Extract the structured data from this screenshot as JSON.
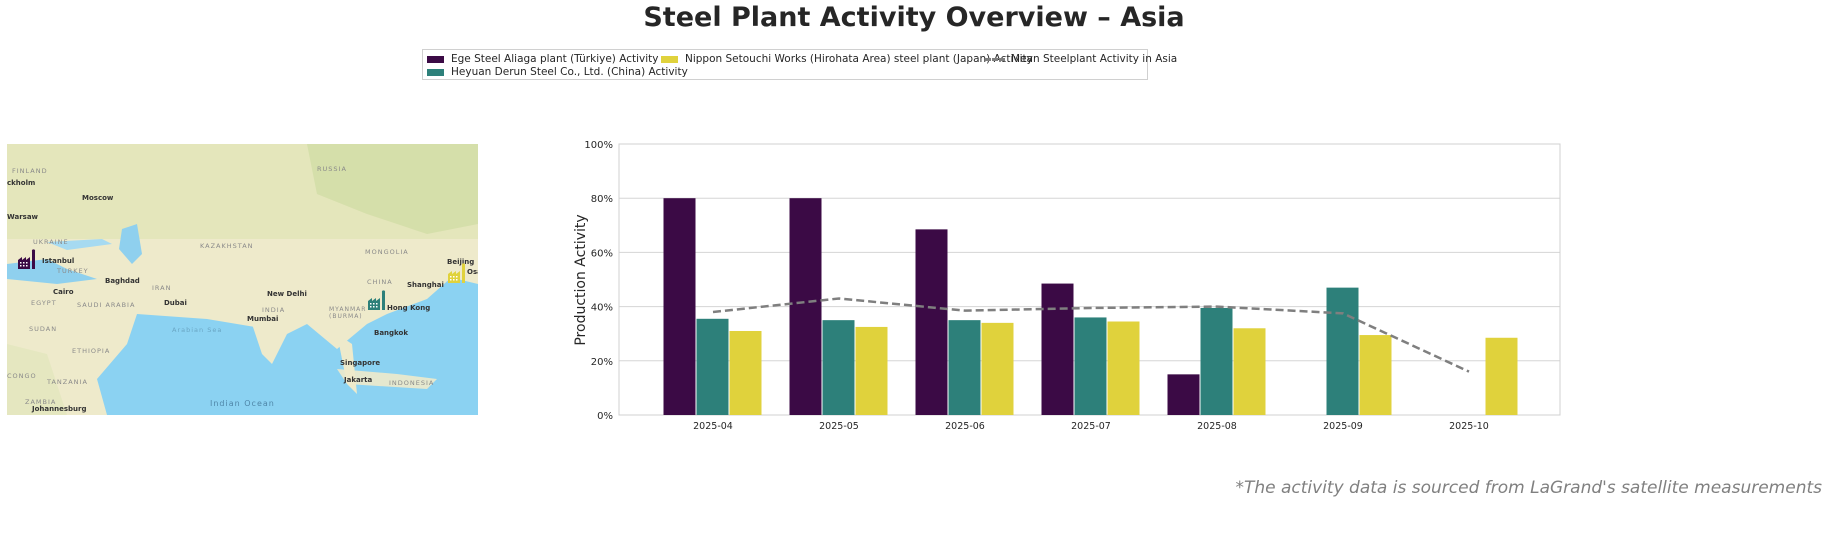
{
  "title": "Steel Plant Activity Overview – Asia",
  "legend": {
    "items": [
      {
        "label": "Ege Steel Aliaga plant (Türkiye) Activity",
        "color": "#3b0a45"
      },
      {
        "label": "Heyuan Derun Steel Co., Ltd. (China) Activity",
        "color": "#2d807a"
      },
      {
        "label": "Nippon Setouchi Works (Hirohata Area) steel plant (Japan) Activity",
        "color": "#e0d23c"
      },
      {
        "label": "Mean Steelplant Activity in Asia",
        "color": "#7f7f7f"
      }
    ]
  },
  "map": {
    "labels": [
      "FINLAND",
      "ckholm",
      "Moscow",
      "Warsaw",
      "UKRAINE",
      "KAZAKHSTAN",
      "RUSSIA",
      "MONGOLIA",
      "Istanbul",
      "TURKEY",
      "Baghdad",
      "IRAN",
      "Cairo",
      "EGYPT",
      "SAUDI ARABIA",
      "Dubai",
      "New Delhi",
      "INDIA",
      "Mumbai",
      "CHINA",
      "Beijing",
      "Shanghai",
      "Hong Kong",
      "MYANMAR (BURMA)",
      "Bangkok",
      "Arabian Sea",
      "SUDAN",
      "ETHIOPIA",
      "Singapore",
      "Jakarta",
      "INDONESIA",
      "TANZANIA",
      "ZAMBIA",
      "Indian Ocean",
      "Johannesburg",
      "CONGO",
      "Osaka"
    ],
    "markers": [
      {
        "plant": "Ege Steel Aliaga plant (Türkiye)",
        "icon": "factory-icon",
        "color": "#3b0a45"
      },
      {
        "plant": "Heyuan Derun Steel Co., Ltd. (China)",
        "icon": "factory-icon",
        "color": "#2d807a"
      },
      {
        "plant": "Nippon Setouchi Works (Hirohata Area) steel plant (Japan)",
        "icon": "factory-icon",
        "color": "#e0d23c"
      }
    ]
  },
  "chart_data": {
    "type": "bar",
    "title": "",
    "xlabel": "",
    "ylabel": "Production Activity",
    "ylim": [
      0,
      100
    ],
    "yticks": [
      "0%",
      "20%",
      "40%",
      "60%",
      "80%",
      "100%"
    ],
    "grid": true,
    "categories": [
      "2025-04",
      "2025-05",
      "2025-06",
      "2025-07",
      "2025-08",
      "2025-09",
      "2025-10"
    ],
    "series": [
      {
        "name": "Ege Steel Aliaga plant (Türkiye) Activity",
        "type": "bar",
        "color": "#3b0a45",
        "values": [
          80,
          80,
          68.5,
          48.5,
          15,
          null,
          null
        ]
      },
      {
        "name": "Heyuan Derun Steel Co., Ltd. (China) Activity",
        "type": "bar",
        "color": "#2d807a",
        "values": [
          35.5,
          35,
          35,
          36,
          39.5,
          47,
          null
        ]
      },
      {
        "name": "Nippon Setouchi Works (Hirohata Area) steel plant (Japan) Activity",
        "type": "bar",
        "color": "#e0d23c",
        "values": [
          31,
          32.5,
          34,
          34.5,
          32,
          29.5,
          28.5
        ]
      },
      {
        "name": "Mean Steelplant Activity in Asia",
        "type": "line",
        "style": "dashed",
        "color": "#7f7f7f",
        "values": [
          38,
          43,
          38.5,
          39.5,
          40,
          37.5,
          16
        ]
      }
    ]
  },
  "footnote": "*The activity data is sourced from LaGrand's satellite measurements"
}
